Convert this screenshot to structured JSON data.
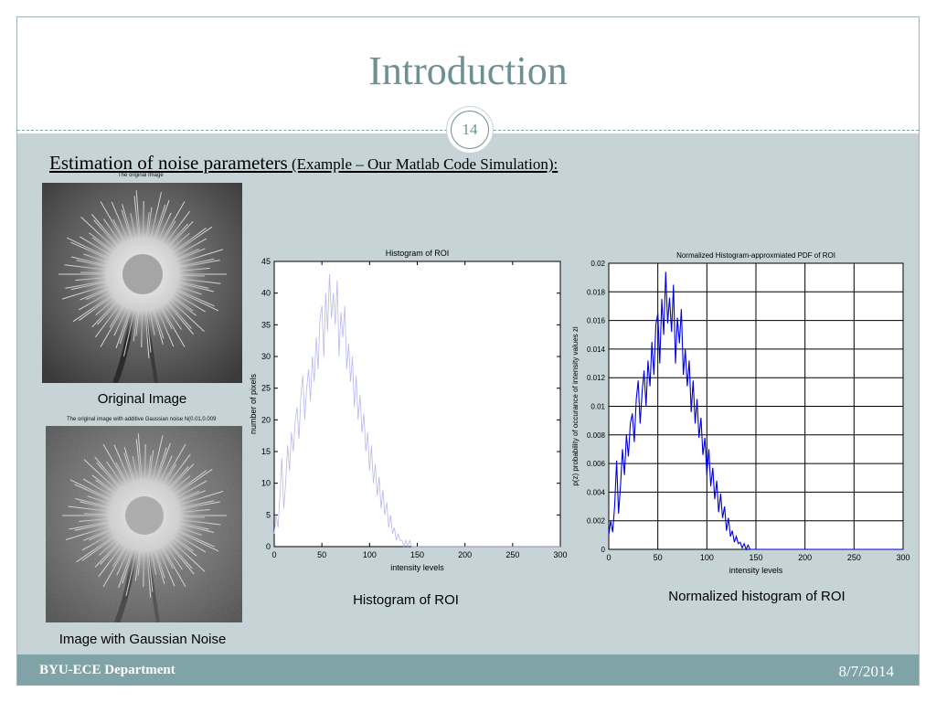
{
  "slide": {
    "title": "Introduction",
    "slide_number": "14",
    "subtitle_main": "Estimation of noise parameters",
    "subtitle_small": " (Example – Our Matlab Code Simulation):",
    "footer_left": "BYU-ECE Department",
    "footer_right": "8/7/2014"
  },
  "images": {
    "original_title": "The original Image",
    "original_caption": "Original Image",
    "noisy_title": "The original image with additive Gaussian noise N(0.01,0.009",
    "noisy_caption": "Image with Gaussian Noise"
  },
  "captions": {
    "hist": "Histogram of ROI",
    "pdf": "Normalized histogram of ROI"
  },
  "colors": {
    "accent": "#6f9093",
    "content_bg": "#c6d4d8",
    "footer": "#7fa3a6",
    "hist_line": "#b8b8f0",
    "pdf_line": "#0000dd"
  },
  "chart_data": [
    {
      "type": "line",
      "title": "Histogram of ROI",
      "xlabel": "intensity levels",
      "ylabel": "number of pixels",
      "xlim": [
        0,
        300
      ],
      "ylim": [
        0,
        45
      ],
      "xticks": [
        0,
        50,
        100,
        150,
        200,
        250,
        300
      ],
      "yticks": [
        0,
        5,
        10,
        15,
        20,
        25,
        30,
        35,
        40,
        45
      ],
      "grid": false,
      "series": [
        {
          "x": [
            0,
            2,
            4,
            6,
            8,
            10,
            12,
            14,
            16,
            18,
            20,
            22,
            24,
            26,
            28,
            30,
            32,
            34,
            36,
            38,
            40,
            42,
            44,
            46,
            48,
            50,
            52,
            54,
            56,
            58,
            60,
            62,
            64,
            66,
            68,
            70,
            72,
            74,
            76,
            78,
            80,
            82,
            84,
            86,
            88,
            90,
            92,
            94,
            96,
            98,
            100,
            102,
            104,
            106,
            108,
            110,
            112,
            114,
            116,
            118,
            120,
            122,
            124,
            126,
            128,
            130,
            132,
            134,
            136,
            138,
            140,
            142,
            144,
            146,
            148,
            150,
            155,
            160,
            170,
            180,
            200,
            220,
            250,
            280,
            300
          ],
          "y": [
            2,
            5,
            3,
            8,
            14,
            6,
            10,
            16,
            12,
            18,
            15,
            20,
            22,
            17,
            24,
            27,
            20,
            25,
            28,
            23,
            30,
            26,
            33,
            28,
            36,
            38,
            30,
            40,
            34,
            43,
            36,
            40,
            35,
            42,
            30,
            37,
            33,
            38,
            28,
            32,
            26,
            30,
            22,
            27,
            20,
            24,
            18,
            21,
            15,
            18,
            12,
            16,
            10,
            13,
            8,
            11,
            6,
            9,
            5,
            7,
            3,
            5,
            2,
            3,
            1,
            2,
            1,
            1,
            0,
            1,
            0,
            1,
            0,
            0,
            0,
            0,
            0,
            0,
            0,
            0,
            0,
            0,
            0,
            0,
            0
          ]
        }
      ]
    },
    {
      "type": "line",
      "title": "Normalized Histogram-approxmiated PDF of ROI",
      "xlabel": "intensity levels",
      "ylabel": "p(z) probability of occurance of intensity values zi",
      "xlim": [
        0,
        300
      ],
      "ylim": [
        0,
        0.02
      ],
      "xticks": [
        0,
        50,
        100,
        150,
        200,
        250,
        300
      ],
      "yticks": [
        0,
        0.002,
        0.004,
        0.006,
        0.008,
        0.01,
        0.012,
        0.014,
        0.016,
        0.018,
        0.02
      ],
      "grid": true,
      "series": [
        {
          "x": [
            0,
            2,
            4,
            6,
            8,
            10,
            12,
            14,
            16,
            18,
            20,
            22,
            24,
            26,
            28,
            30,
            32,
            34,
            36,
            38,
            40,
            42,
            44,
            46,
            48,
            50,
            52,
            54,
            56,
            58,
            60,
            62,
            64,
            66,
            68,
            70,
            72,
            74,
            76,
            78,
            80,
            82,
            84,
            86,
            88,
            90,
            92,
            94,
            96,
            98,
            100,
            102,
            104,
            106,
            108,
            110,
            112,
            114,
            116,
            118,
            120,
            122,
            124,
            126,
            128,
            130,
            132,
            134,
            136,
            138,
            140,
            142,
            144,
            146,
            148,
            150,
            155,
            160,
            170,
            180,
            200,
            220,
            250,
            280,
            300
          ],
          "y": [
            0.001,
            0.002,
            0.0012,
            0.003,
            0.0062,
            0.0025,
            0.0045,
            0.007,
            0.0052,
            0.008,
            0.0065,
            0.0088,
            0.0095,
            0.0075,
            0.0105,
            0.0118,
            0.0088,
            0.011,
            0.0125,
            0.01,
            0.0132,
            0.0114,
            0.0145,
            0.0122,
            0.0157,
            0.0165,
            0.013,
            0.0175,
            0.015,
            0.0194,
            0.0158,
            0.0176,
            0.0152,
            0.0185,
            0.013,
            0.0162,
            0.0144,
            0.0168,
            0.0122,
            0.014,
            0.0114,
            0.0132,
            0.0096,
            0.0118,
            0.0088,
            0.0105,
            0.0078,
            0.0092,
            0.0066,
            0.0078,
            0.0052,
            0.007,
            0.0044,
            0.0057,
            0.0035,
            0.0048,
            0.0026,
            0.0039,
            0.0022,
            0.003,
            0.0013,
            0.0022,
            0.0009,
            0.0013,
            0.0005,
            0.0009,
            0.0004,
            0.0005,
            0.0001,
            0.0004,
            0.0,
            0.0003,
            0.0,
            0.0,
            0.0,
            0.0,
            0.0,
            0.0,
            0.0,
            0.0,
            0.0,
            0.0,
            0.0,
            0.0,
            0.0
          ]
        }
      ]
    }
  ]
}
